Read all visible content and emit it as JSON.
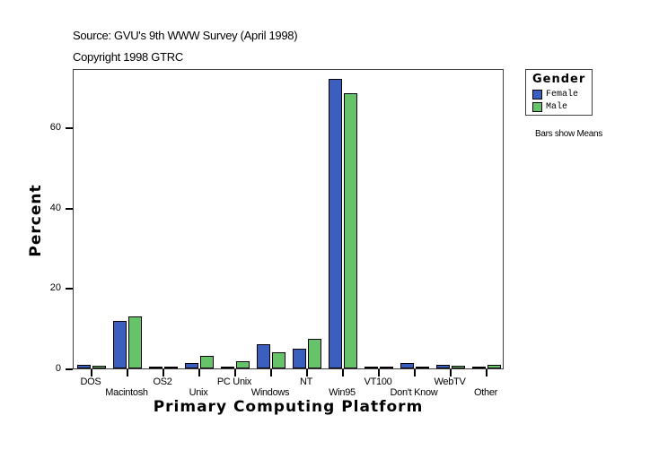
{
  "header": {
    "source": "Source: GVU's 9th WWW Survey (April 1998)",
    "copyright": "Copyright 1998 GTRC"
  },
  "legend": {
    "title": "Gender",
    "items": [
      {
        "label": "Female",
        "color": "#3a5fbf"
      },
      {
        "label": "Male",
        "color": "#66c36a"
      }
    ],
    "note": "Bars show Means"
  },
  "chart_data": {
    "type": "bar",
    "title": "",
    "xlabel": "Primary Computing Platform",
    "ylabel": "Percent",
    "ylim": [
      0,
      74.8
    ],
    "yticks": [
      0,
      20,
      40,
      60
    ],
    "grid": false,
    "legend_position": "right",
    "categories": [
      "DOS",
      "Macintosh",
      "OS2",
      "Unix",
      "PC Unix",
      "Windows",
      "NT",
      "Win95",
      "VT100",
      "Don't Know",
      "WebTV",
      "Other"
    ],
    "series": [
      {
        "name": "Female",
        "color": "#3a5fbf",
        "values": [
          0.7,
          11.6,
          0.1,
          1.2,
          0.3,
          5.8,
          4.7,
          71.9,
          0.0,
          1.2,
          0.7,
          0.3
        ]
      },
      {
        "name": "Male",
        "color": "#66c36a",
        "values": [
          0.5,
          12.8,
          0.3,
          2.9,
          1.6,
          3.8,
          7.1,
          68.3,
          0.1,
          0.1,
          0.5,
          0.7
        ]
      }
    ]
  }
}
